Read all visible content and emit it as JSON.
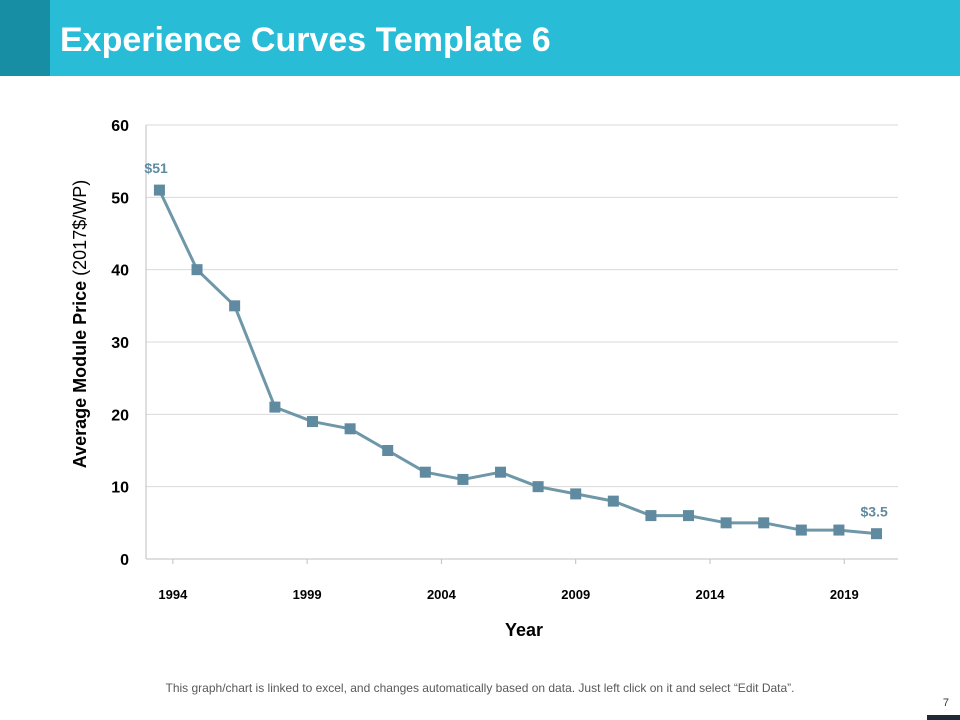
{
  "header": {
    "title": "Experience Curves Template 6"
  },
  "chart_data": {
    "type": "line",
    "title": "",
    "xlabel": "Year",
    "ylabel_bold": "Average Module Price",
    "ylabel_regular": "(2017$/WP)",
    "ylim": [
      0,
      60
    ],
    "yticks": [
      0,
      10,
      20,
      30,
      40,
      50,
      60
    ],
    "xlim": [
      1993,
      2021
    ],
    "xticks": [
      1994,
      1999,
      2004,
      2009,
      2014,
      2019
    ],
    "grid": true,
    "series": [
      {
        "name": "Average Module Price",
        "x": [
          1993.5,
          1994.9,
          1996.3,
          1997.8,
          1999.2,
          2000.6,
          2002.0,
          2003.4,
          2004.8,
          2006.2,
          2007.6,
          2009.0,
          2010.4,
          2011.8,
          2013.2,
          2014.6,
          2016.0,
          2017.4,
          2018.8,
          2020.2
        ],
        "values": [
          51,
          40,
          35,
          21,
          19,
          18,
          15,
          12,
          11,
          12,
          10,
          9,
          8,
          6,
          6,
          5,
          5,
          4,
          4,
          3.5
        ]
      }
    ],
    "annotations": [
      {
        "label": "$51",
        "point_index": 0
      },
      {
        "label": "$3.5",
        "point_index": 19
      }
    ],
    "colors": {
      "line": "#6e97a8",
      "marker": "#5f8aa0",
      "annotation": "#5f8aa0",
      "grid": "#d9d9d9"
    }
  },
  "footer": {
    "note": "This graph/chart is linked to excel, and changes automatically based on data. Just left click on it and select “Edit Data”.",
    "page_number": "7"
  }
}
